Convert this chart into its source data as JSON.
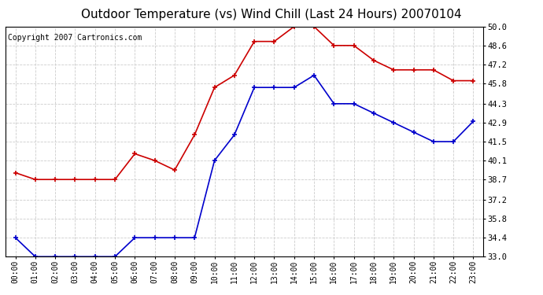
{
  "title": "Outdoor Temperature (vs) Wind Chill (Last 24 Hours) 20070104",
  "copyright": "Copyright 2007 Cartronics.com",
  "x_labels": [
    "00:00",
    "01:00",
    "02:00",
    "03:00",
    "04:00",
    "05:00",
    "06:00",
    "07:00",
    "08:00",
    "09:00",
    "10:00",
    "11:00",
    "12:00",
    "13:00",
    "14:00",
    "15:00",
    "16:00",
    "17:00",
    "18:00",
    "19:00",
    "20:00",
    "21:00",
    "22:00",
    "23:00"
  ],
  "temp": [
    39.2,
    38.7,
    38.7,
    38.7,
    38.7,
    38.7,
    40.6,
    40.1,
    39.4,
    42.0,
    45.5,
    46.4,
    48.9,
    48.9,
    50.0,
    50.0,
    48.6,
    48.6,
    47.5,
    46.8,
    46.8,
    46.8,
    46.0,
    46.0
  ],
  "windchill": [
    34.4,
    33.0,
    33.0,
    33.0,
    33.0,
    33.0,
    34.4,
    34.4,
    34.4,
    34.4,
    40.1,
    42.0,
    45.5,
    45.5,
    45.5,
    46.4,
    44.3,
    44.3,
    43.6,
    42.9,
    42.2,
    41.5,
    41.5,
    43.0
  ],
  "temp_color": "#cc0000",
  "windchill_color": "#0000cc",
  "y_min": 33.0,
  "y_max": 50.0,
  "y_ticks": [
    33.0,
    34.4,
    35.8,
    37.2,
    38.7,
    40.1,
    41.5,
    42.9,
    44.3,
    45.8,
    47.2,
    48.6,
    50.0
  ],
  "background_color": "#ffffff",
  "grid_color": "#cccccc",
  "title_fontsize": 11,
  "copyright_fontsize": 7
}
